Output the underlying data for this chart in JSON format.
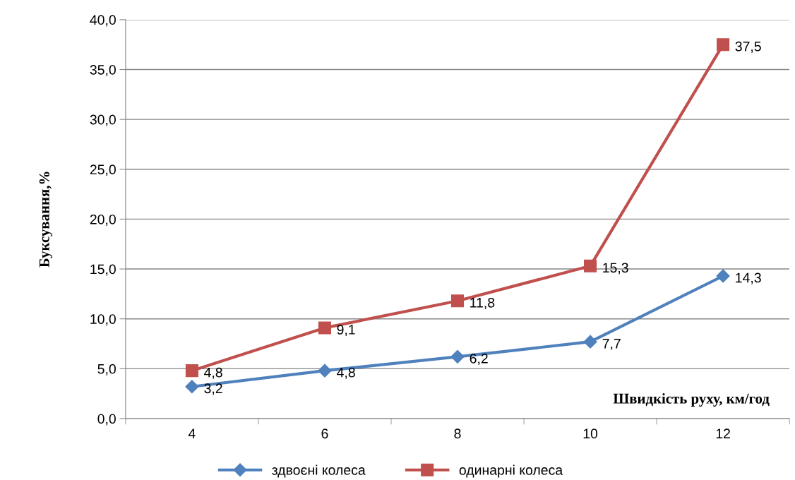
{
  "chart_data": {
    "type": "line",
    "xlabel": "Швидкість руху, км/год",
    "ylabel": "Буксування,%",
    "categories": [
      "4",
      "6",
      "8",
      "10",
      "12"
    ],
    "series": [
      {
        "name": "здвоєні колеса",
        "color": "#4f81bd",
        "marker": "diamond",
        "values": [
          3.2,
          4.8,
          6.2,
          7.7,
          14.3
        ],
        "value_labels": [
          "3,2",
          "4,8",
          "6,2",
          "7,7",
          "14,3"
        ]
      },
      {
        "name": "одинарні колеса",
        "color": "#c0504d",
        "marker": "square",
        "values": [
          4.8,
          9.1,
          11.8,
          15.3,
          37.5
        ],
        "value_labels": [
          "4,8",
          "9,1",
          "11,8",
          "15,3",
          "37,5"
        ]
      }
    ],
    "ylim": [
      0,
      40
    ],
    "yticks": [
      {
        "value": 0,
        "label": "0,0"
      },
      {
        "value": 5,
        "label": "5,0"
      },
      {
        "value": 10,
        "label": "10,0"
      },
      {
        "value": 15,
        "label": "15,0"
      },
      {
        "value": 20,
        "label": "20,0"
      },
      {
        "value": 25,
        "label": "25,0"
      },
      {
        "value": 30,
        "label": "30,0"
      },
      {
        "value": 35,
        "label": "35,0"
      },
      {
        "value": 40,
        "label": "40,0"
      }
    ],
    "grid": "y",
    "legend": "bottom",
    "line_style": "solid"
  }
}
